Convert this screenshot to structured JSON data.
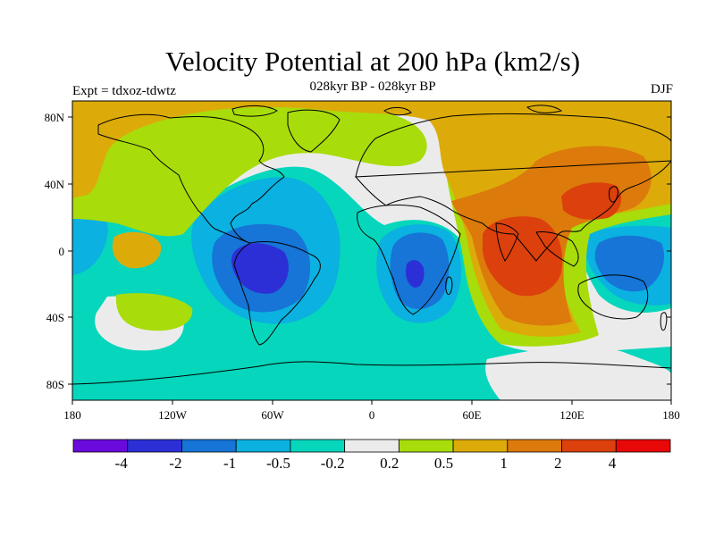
{
  "title": "Velocity Potential at 200 hPa (km2/s)",
  "subtitle": "028kyr BP - 028kyr BP",
  "experiment_label": "Expt = tdxoz-tdwtz",
  "season": "DJF",
  "axes": {
    "lat_ticks": [
      "80N",
      "40N",
      "0",
      "40S",
      "80S"
    ],
    "lon_ticks": [
      "180",
      "120W",
      "60W",
      "0",
      "60E",
      "120E",
      "180"
    ]
  },
  "colorbar": {
    "colors": [
      "#6a0adc",
      "#2d2fd6",
      "#1675d6",
      "#0bb1e0",
      "#06d6bc",
      "#ebebeb",
      "#a8dc0b",
      "#dcab0a",
      "#dc7a0c",
      "#dc400c",
      "#e80808"
    ],
    "labels": [
      "-4",
      "-2",
      "-1",
      "-0.5",
      "-0.2",
      "0.2",
      "0.5",
      "1",
      "2",
      "4"
    ]
  },
  "field_colors": {
    "neg2": "#2d2fd6",
    "neg1": "#1675d6",
    "neg05": "#0bb1e0",
    "neg02": "#06d6bc",
    "neutral": "#ebebeb",
    "pos05": "#a8dc0b",
    "pos1": "#dcab0a",
    "pos2": "#dc7a0c",
    "pos4": "#dc400c"
  }
}
